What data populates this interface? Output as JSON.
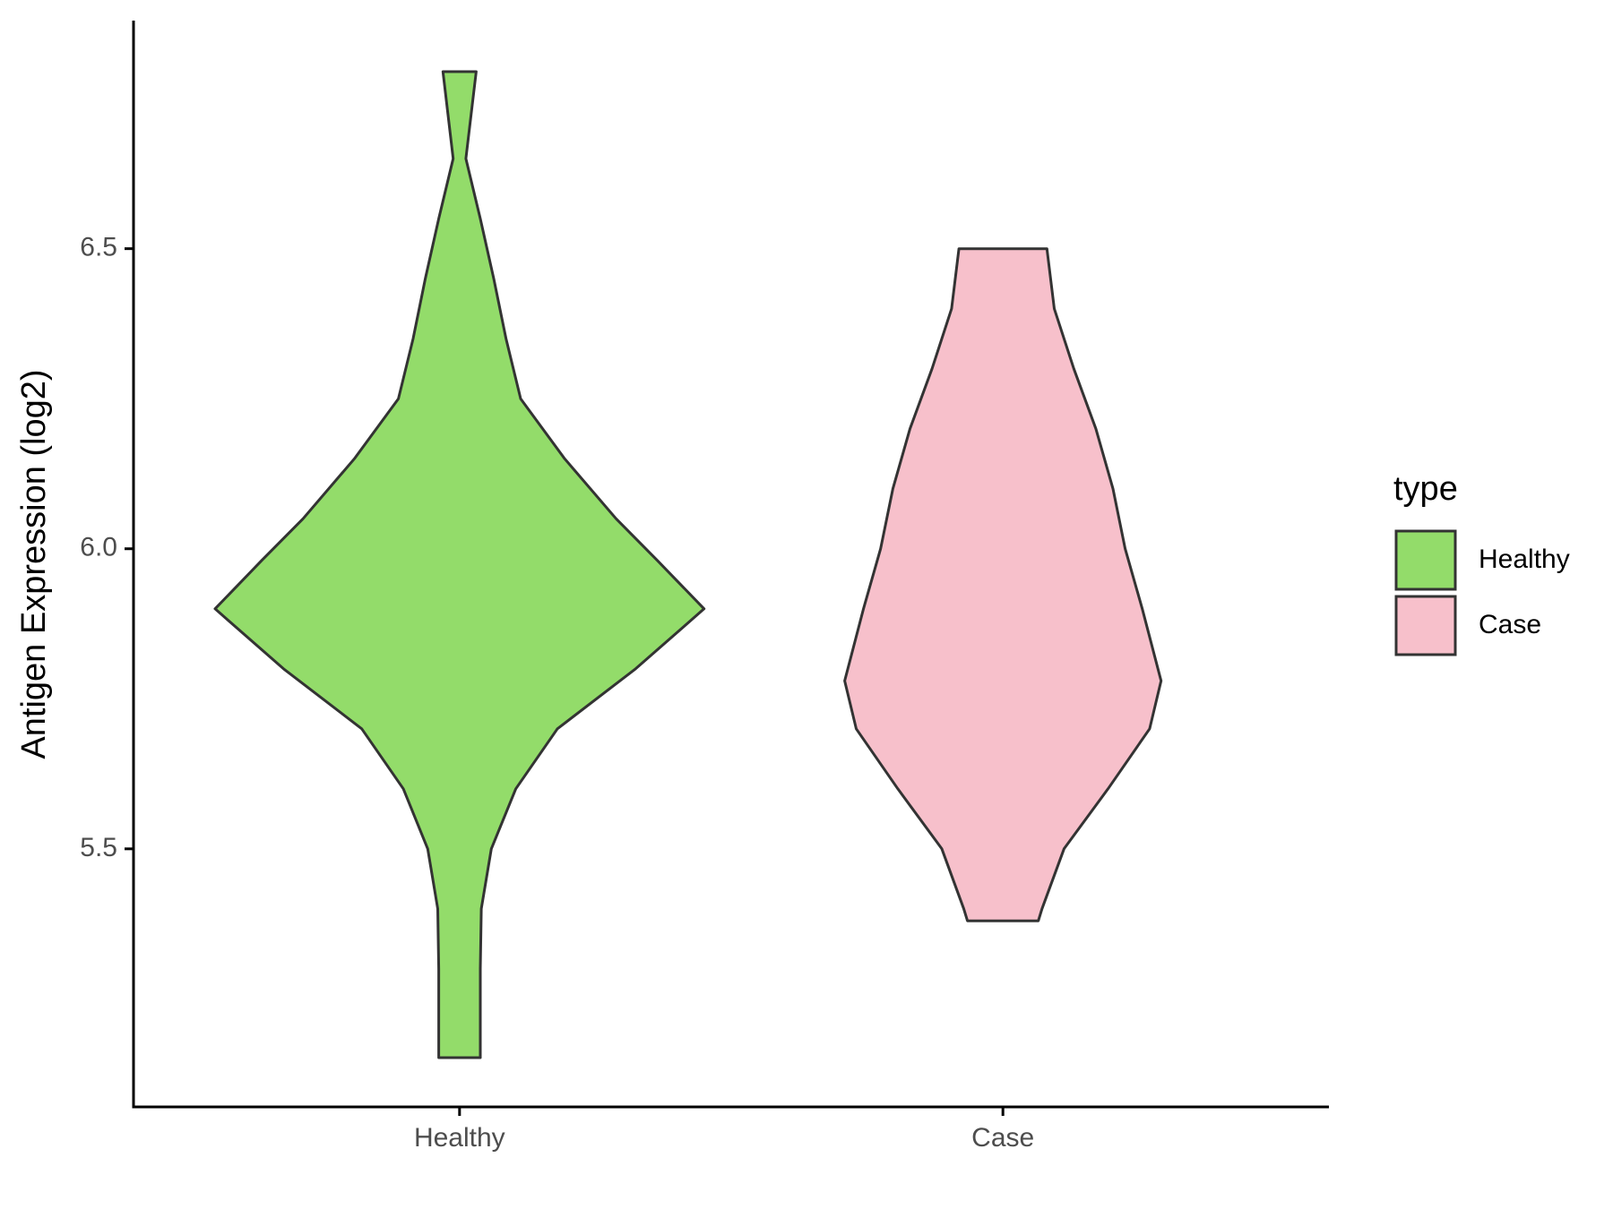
{
  "chart_data": {
    "type": "violin",
    "y_label": "Antigen Expression (log2)",
    "categories": [
      "Healthy",
      "Case"
    ],
    "legend_title": "type",
    "legend_position": "right",
    "ylim": [
      5.07,
      6.88
    ],
    "yticks": [
      5.5,
      {
        "value": 6,
        "label": "6.0"
      },
      6.5
    ],
    "series": [
      {
        "name": "Healthy",
        "color": "#93dc6a",
        "values": [
          6.795,
          6.65,
          6.55,
          6.45,
          6.35,
          6.25,
          6.15,
          6.05,
          5.98,
          5.9,
          5.8,
          5.7,
          5.6,
          5.5,
          5.4,
          5.3,
          5.2,
          5.152
        ],
        "widths": [
          0.068,
          0.026,
          0.085,
          0.14,
          0.19,
          0.25,
          0.43,
          0.64,
          0.81,
          1.0,
          0.72,
          0.4,
          0.23,
          0.13,
          0.089,
          0.085,
          0.085,
          0.085
        ]
      },
      {
        "name": "Case",
        "color": "#f7c0cb",
        "values": [
          6.5,
          6.4,
          6.3,
          6.2,
          6.1,
          6.0,
          5.9,
          5.78,
          5.7,
          5.6,
          5.5,
          5.4,
          5.38
        ],
        "widths": [
          0.18,
          0.21,
          0.29,
          0.38,
          0.45,
          0.5,
          0.57,
          0.647,
          0.6,
          0.43,
          0.25,
          0.16,
          0.145
        ]
      }
    ]
  }
}
